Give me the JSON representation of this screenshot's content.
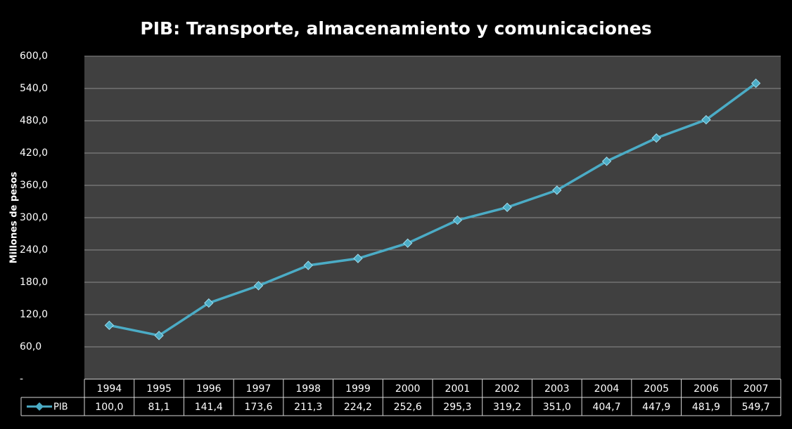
{
  "chart_data": {
    "type": "line",
    "title": "PIB: Transporte, almacenamiento y comunicaciones",
    "y_label": "Millones de pesos",
    "categories": [
      "1994",
      "1995",
      "1996",
      "1997",
      "1998",
      "1999",
      "2000",
      "2001",
      "2002",
      "2003",
      "2004",
      "2005",
      "2006",
      "2007"
    ],
    "series": [
      {
        "name": "PIB",
        "color": "#4bacc6",
        "values": [
          100.0,
          81.1,
          141.4,
          173.6,
          211.3,
          224.2,
          252.6,
          295.3,
          319.2,
          351.0,
          404.7,
          447.9,
          481.9,
          549.7
        ],
        "value_labels": [
          "100,0",
          "81,1",
          "141,4",
          "173,6",
          "211,3",
          "224,2",
          "252,6",
          "295,3",
          "319,2",
          "351,0",
          "404,7",
          "447,9",
          "481,9",
          "549,7"
        ]
      }
    ],
    "ylim": [
      0,
      600
    ],
    "yticks": [
      {
        "value": 0,
        "label": "-"
      },
      {
        "value": 60,
        "label": "60,0"
      },
      {
        "value": 120,
        "label": "120,0"
      },
      {
        "value": 180,
        "label": "180,0"
      },
      {
        "value": 240,
        "label": "240,0"
      },
      {
        "value": 300,
        "label": "300,0"
      },
      {
        "value": 360,
        "label": "360,0"
      },
      {
        "value": 420,
        "label": "420,0"
      },
      {
        "value": 480,
        "label": "480,0"
      },
      {
        "value": 540,
        "label": "540,0"
      },
      {
        "value": 600,
        "label": "600,0"
      }
    ],
    "grid": true
  }
}
